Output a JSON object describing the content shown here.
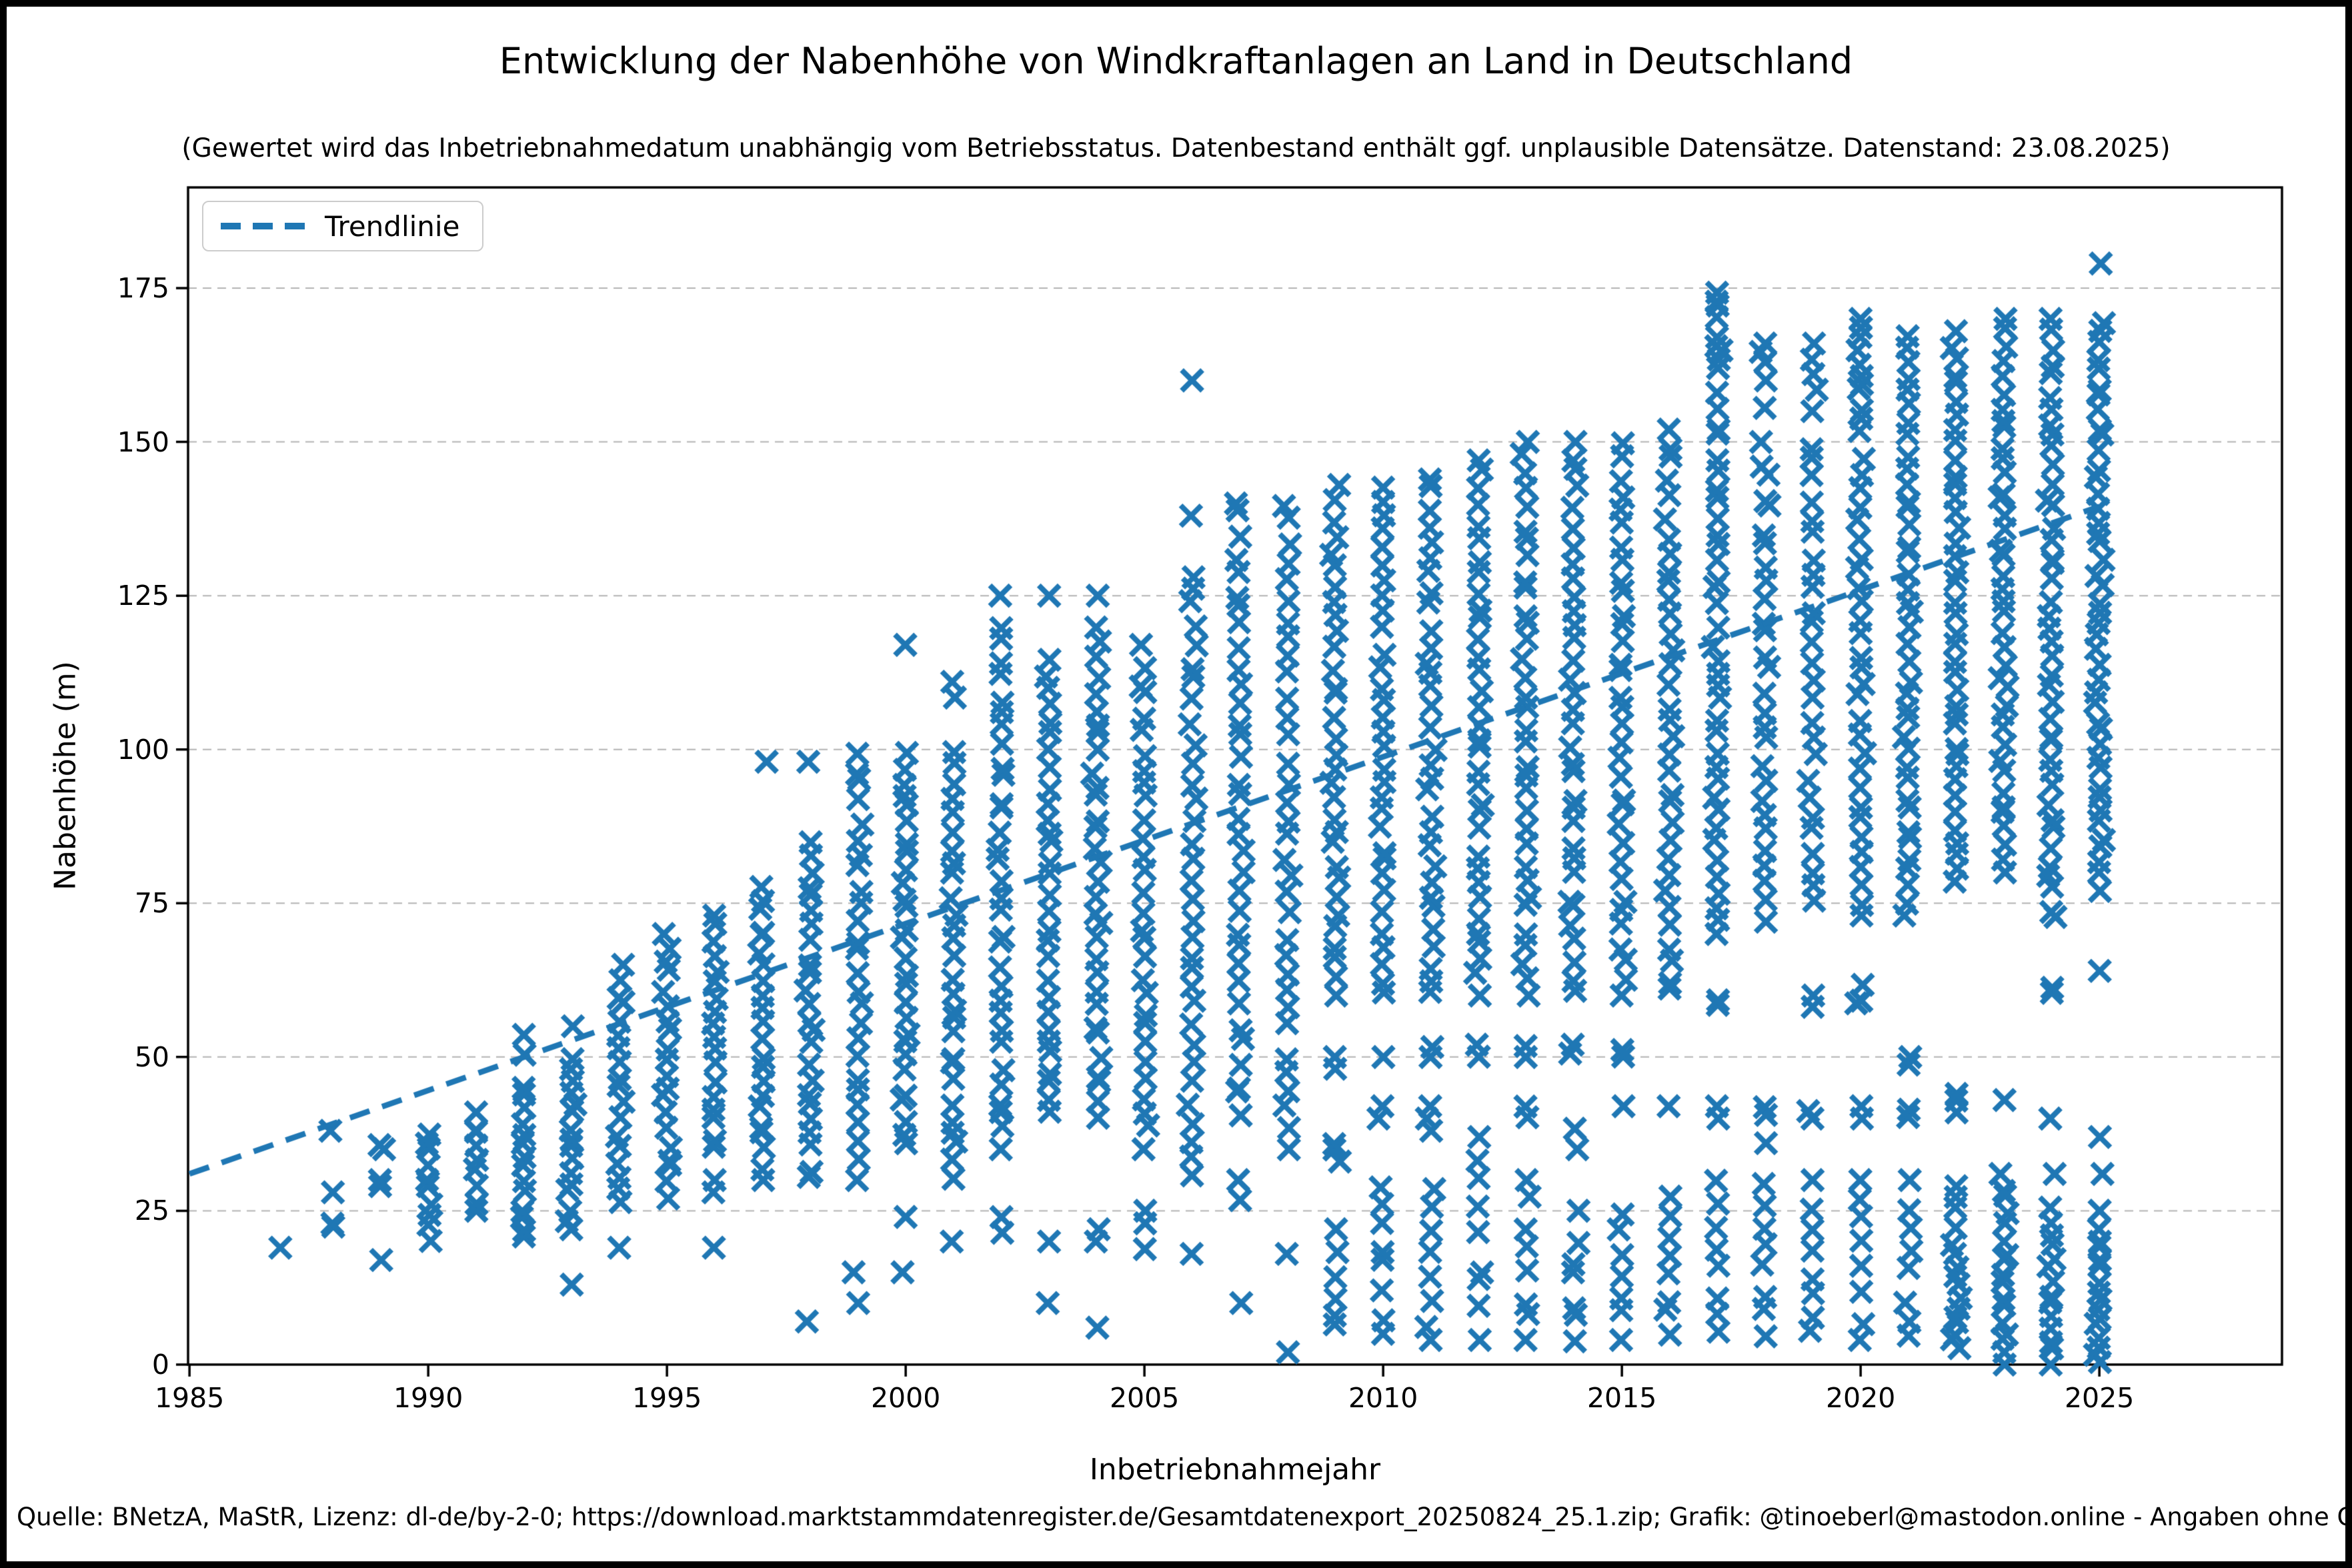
{
  "header": {
    "title": "Entwicklung der Nabenhöhe von Windkraftanlagen an Land in Deutschland",
    "subtitle": "(Gewertet wird das Inbetriebnahmedatum unabhängig vom Betriebsstatus. Datenbestand enthält ggf. unplausible Datensätze. Datenstand: 23.08.2025)"
  },
  "footer": {
    "text": "Quelle: BNetzA, MaStR, Lizenz: dl-de/by-2-0; https://download.marktstammdatenregister.de/Gesamtdatenexport_20250824_25.1.zip; Grafik: @tinoeberl@mastodon.online - Angaben ohne Gewähr."
  },
  "legend": {
    "label": "Trendlinie",
    "position": "upper-left",
    "line_style": "dashed"
  },
  "colors": {
    "accent": "#1f77b4",
    "grid": "#b3b3b3",
    "spine": "#000000",
    "text": "#000000",
    "legend_border": "#cccccc"
  },
  "chart_data": {
    "type": "scatter",
    "title": "Entwicklung der Nabenhöhe von Windkraftanlagen an Land in Deutschland",
    "subtitle": "(Gewertet wird das Inbetriebnahmedatum unabhängig vom Betriebsstatus. Datenbestand enthält ggf. unplausible Datensätze. Datenstand: 23.08.2025)",
    "xlabel": "Inbetriebnahmejahr",
    "ylabel": "Nabenhöhe (m)",
    "xlim": [
      1984.97,
      2028.85
    ],
    "ylim": [
      0,
      191.4
    ],
    "xticks": [
      1985,
      1990,
      1995,
      2000,
      2005,
      2010,
      2015,
      2020,
      2025
    ],
    "yticks": [
      0,
      25,
      50,
      75,
      100,
      125,
      150,
      175
    ],
    "grid": "horizontal-dashed",
    "marker": "x",
    "trendline": {
      "label": "Trendlinie",
      "x": [
        1985,
        2025
      ],
      "y": [
        31,
        139.5
      ],
      "style": "dashed"
    },
    "points_spec_format": "bands per year: [min_hub_height_m, max_hub_height_m, point_count]",
    "points_spec": [
      {
        "year": 1987,
        "bands": [
          [
            19,
            19,
            1
          ]
        ]
      },
      {
        "year": 1988,
        "bands": [
          [
            22,
            23,
            2
          ],
          [
            28,
            28,
            1
          ],
          [
            38,
            38,
            1
          ]
        ]
      },
      {
        "year": 1989,
        "bands": [
          [
            17,
            17,
            1
          ],
          [
            29,
            30,
            2
          ],
          [
            35,
            36,
            2
          ]
        ]
      },
      {
        "year": 1990,
        "bands": [
          [
            20,
            26,
            4
          ],
          [
            29,
            38,
            6
          ]
        ]
      },
      {
        "year": 1991,
        "bands": [
          [
            25,
            41,
            9
          ]
        ]
      },
      {
        "year": 1992,
        "bands": [
          [
            20,
            45,
            14
          ],
          [
            50,
            55,
            2
          ]
        ]
      },
      {
        "year": 1993,
        "bands": [
          [
            13,
            13,
            1
          ],
          [
            22,
            50,
            16
          ],
          [
            55,
            55,
            1
          ]
        ]
      },
      {
        "year": 1994,
        "bands": [
          [
            19,
            19,
            1
          ],
          [
            26,
            65,
            18
          ]
        ]
      },
      {
        "year": 1995,
        "bands": [
          [
            27,
            70,
            20
          ]
        ]
      },
      {
        "year": 1996,
        "bands": [
          [
            19,
            19,
            1
          ],
          [
            28,
            30,
            2
          ],
          [
            35,
            73,
            18
          ]
        ]
      },
      {
        "year": 1997,
        "bands": [
          [
            30,
            78,
            22
          ],
          [
            98,
            98,
            1
          ]
        ]
      },
      {
        "year": 1998,
        "bands": [
          [
            7,
            7,
            1
          ],
          [
            30,
            85,
            24
          ],
          [
            98,
            98,
            1
          ]
        ]
      },
      {
        "year": 1999,
        "bands": [
          [
            10,
            10,
            1
          ],
          [
            15,
            15,
            1
          ],
          [
            30,
            100,
            26
          ]
        ]
      },
      {
        "year": 2000,
        "bands": [
          [
            15,
            15,
            1
          ],
          [
            24,
            24,
            1
          ],
          [
            35,
            100,
            28
          ],
          [
            117,
            117,
            1
          ]
        ]
      },
      {
        "year": 2001,
        "bands": [
          [
            20,
            20,
            1
          ],
          [
            30,
            100,
            28
          ],
          [
            108,
            111,
            2
          ]
        ]
      },
      {
        "year": 2002,
        "bands": [
          [
            20,
            25,
            2
          ],
          [
            35,
            114,
            30
          ],
          [
            118,
            120,
            2
          ],
          [
            125,
            125,
            1
          ]
        ]
      },
      {
        "year": 2003,
        "bands": [
          [
            10,
            10,
            1
          ],
          [
            20,
            20,
            1
          ],
          [
            40,
            115,
            30
          ],
          [
            125,
            125,
            1
          ]
        ]
      },
      {
        "year": 2004,
        "bands": [
          [
            6,
            6,
            1
          ],
          [
            20,
            22,
            2
          ],
          [
            40,
            120,
            32
          ],
          [
            125,
            125,
            1
          ]
        ]
      },
      {
        "year": 2005,
        "bands": [
          [
            18,
            25,
            3
          ],
          [
            35,
            117,
            30
          ]
        ]
      },
      {
        "year": 2006,
        "bands": [
          [
            18,
            18,
            1
          ],
          [
            30,
            120,
            30
          ],
          [
            124,
            128,
            3
          ],
          [
            138,
            138,
            1
          ],
          [
            160,
            160,
            1
          ]
        ]
      },
      {
        "year": 2007,
        "bands": [
          [
            10,
            10,
            1
          ],
          [
            25,
            30,
            2
          ],
          [
            40,
            135,
            32
          ],
          [
            138,
            140,
            2
          ]
        ]
      },
      {
        "year": 2008,
        "bands": [
          [
            2,
            2,
            1
          ],
          [
            18,
            18,
            1
          ],
          [
            35,
            140,
            34
          ]
        ]
      },
      {
        "year": 2009,
        "bands": [
          [
            5,
            22,
            6
          ],
          [
            33,
            36,
            3
          ],
          [
            48,
            50,
            2
          ],
          [
            60,
            143,
            32
          ]
        ]
      },
      {
        "year": 2010,
        "bands": [
          [
            5,
            30,
            8
          ],
          [
            40,
            42,
            2
          ],
          [
            50,
            50,
            1
          ],
          [
            60,
            143,
            32
          ]
        ]
      },
      {
        "year": 2011,
        "bands": [
          [
            4,
            30,
            8
          ],
          [
            38,
            42,
            3
          ],
          [
            50,
            52,
            2
          ],
          [
            60,
            145,
            32
          ]
        ]
      },
      {
        "year": 2012,
        "bands": [
          [
            4,
            37,
            9
          ],
          [
            50,
            52,
            2
          ],
          [
            60,
            147,
            34
          ]
        ]
      },
      {
        "year": 2013,
        "bands": [
          [
            4,
            30,
            8
          ],
          [
            40,
            42,
            2
          ],
          [
            50,
            52,
            2
          ],
          [
            60,
            150,
            34
          ]
        ]
      },
      {
        "year": 2014,
        "bands": [
          [
            3,
            25,
            7
          ],
          [
            35,
            40,
            2
          ],
          [
            50,
            52,
            2
          ],
          [
            60,
            150,
            34
          ]
        ]
      },
      {
        "year": 2015,
        "bands": [
          [
            4,
            25,
            7
          ],
          [
            42,
            42,
            1
          ],
          [
            50,
            52,
            2
          ],
          [
            60,
            150,
            34
          ]
        ]
      },
      {
        "year": 2016,
        "bands": [
          [
            4,
            28,
            8
          ],
          [
            42,
            42,
            1
          ],
          [
            60,
            152,
            34
          ]
        ]
      },
      {
        "year": 2017,
        "bands": [
          [
            4,
            30,
            8
          ],
          [
            40,
            42,
            2
          ],
          [
            58,
            60,
            2
          ],
          [
            70,
            158,
            36
          ],
          [
            162,
            167,
            5
          ],
          [
            170,
            175,
            4
          ]
        ]
      },
      {
        "year": 2018,
        "bands": [
          [
            4,
            30,
            8
          ],
          [
            36,
            36,
            1
          ],
          [
            40,
            42,
            2
          ],
          [
            72,
            150,
            28
          ],
          [
            155,
            160,
            2
          ],
          [
            163,
            166,
            3
          ]
        ]
      },
      {
        "year": 2019,
        "bands": [
          [
            4,
            30,
            8
          ],
          [
            40,
            42,
            2
          ],
          [
            58,
            60,
            2
          ],
          [
            75,
            150,
            26
          ],
          [
            155,
            166,
            5
          ]
        ]
      },
      {
        "year": 2020,
        "bands": [
          [
            4,
            30,
            8
          ],
          [
            40,
            42,
            2
          ],
          [
            58,
            62,
            3
          ],
          [
            73,
            156,
            32
          ],
          [
            158,
            170,
            8
          ]
        ]
      },
      {
        "year": 2021,
        "bands": [
          [
            4,
            30,
            8
          ],
          [
            40,
            42,
            2
          ],
          [
            48,
            50,
            2
          ],
          [
            73,
            168,
            40
          ]
        ]
      },
      {
        "year": 2022,
        "bands": [
          [
            2,
            16,
            10
          ],
          [
            18,
            29,
            6
          ],
          [
            41,
            44,
            3
          ],
          [
            78,
            168,
            40
          ]
        ]
      },
      {
        "year": 2023,
        "bands": [
          [
            0,
            20,
            12
          ],
          [
            23,
            31,
            5
          ],
          [
            43,
            43,
            1
          ],
          [
            80,
            170,
            40
          ]
        ]
      },
      {
        "year": 2024,
        "bands": [
          [
            0,
            21,
            12
          ],
          [
            23,
            26,
            2
          ],
          [
            31,
            31,
            1
          ],
          [
            40,
            40,
            1
          ],
          [
            60,
            62,
            2
          ],
          [
            72,
            170,
            42
          ]
        ]
      },
      {
        "year": 2025,
        "bands": [
          [
            0,
            17,
            12
          ],
          [
            19,
            22,
            3
          ],
          [
            25,
            25,
            1
          ],
          [
            31,
            31,
            1
          ],
          [
            37,
            37,
            1
          ],
          [
            64,
            64,
            1
          ],
          [
            77,
            170,
            44
          ],
          [
            179,
            179,
            1
          ]
        ]
      }
    ]
  }
}
